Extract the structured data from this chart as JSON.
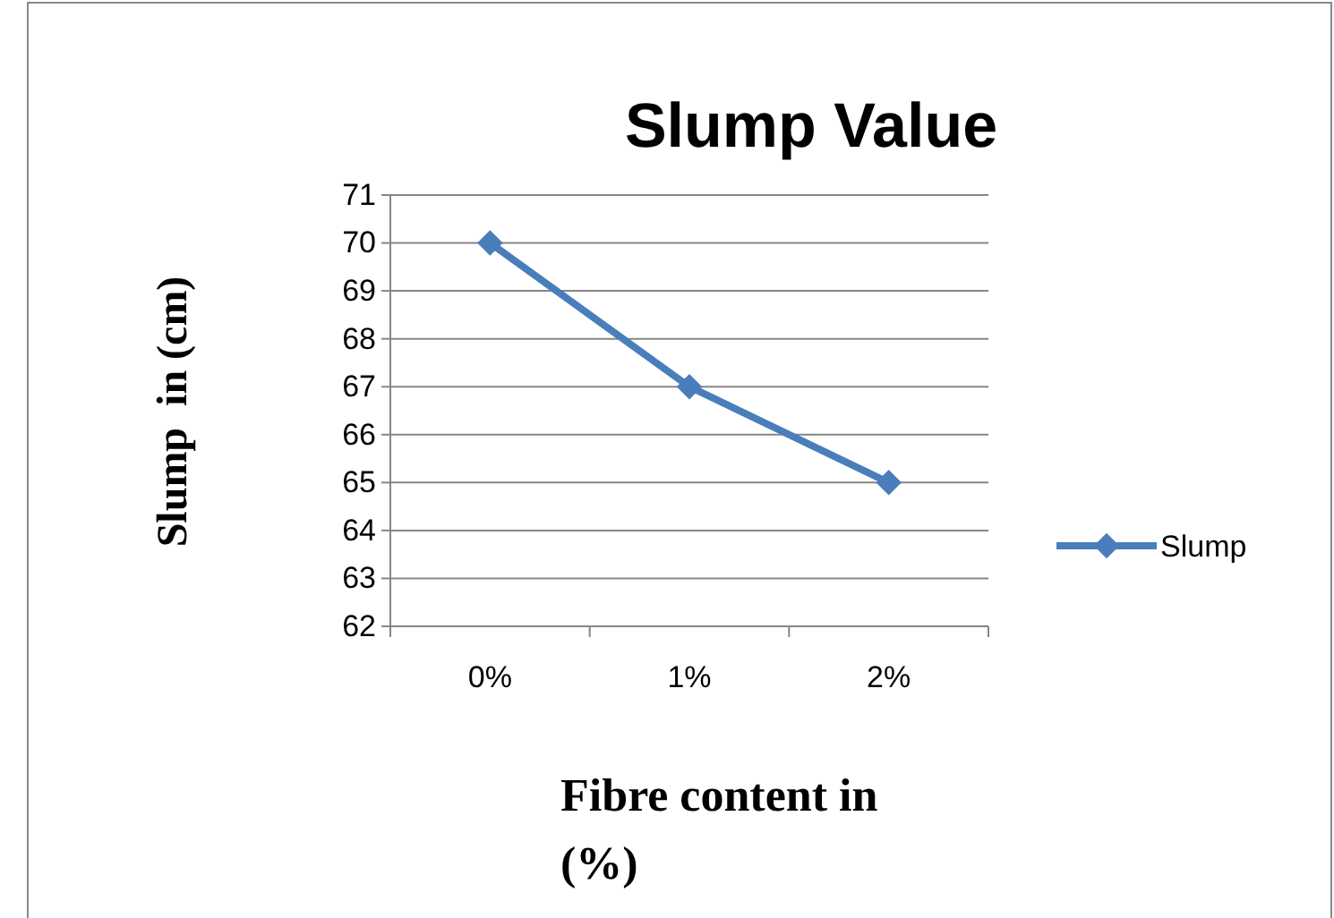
{
  "chart_data": {
    "type": "line",
    "title": "Slump Value",
    "xlabel": "Fibre content in (%)",
    "ylabel": "Slump  in (cm)",
    "categories": [
      "0%",
      "1%",
      "2%"
    ],
    "series": [
      {
        "name": "Slump",
        "color": "#4a7ebb",
        "values": [
          70,
          67,
          65
        ]
      }
    ],
    "ylim": [
      62,
      71
    ],
    "yticks": [
      62,
      63,
      64,
      65,
      66,
      67,
      68,
      69,
      70,
      71
    ],
    "grid": "y",
    "legend": "right",
    "marker": "diamond",
    "line_style": "solid"
  }
}
